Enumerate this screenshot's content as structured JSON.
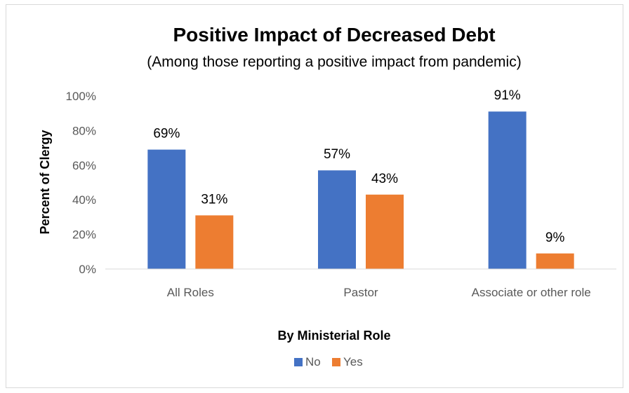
{
  "chart_data": {
    "type": "bar",
    "title": "Positive Impact of Decreased Debt",
    "subtitle": "(Among those reporting a positive impact from pandemic)",
    "xlabel": "By Ministerial Role",
    "ylabel": "Percent of Clergy",
    "categories": [
      "All Roles",
      "Pastor",
      "Associate or other role"
    ],
    "series": [
      {
        "name": "No",
        "values": [
          69,
          57,
          91
        ],
        "labels": [
          "69%",
          "57%",
          "91%"
        ],
        "color": "#4472C4"
      },
      {
        "name": "Yes",
        "values": [
          31,
          43,
          9
        ],
        "labels": [
          "31%",
          "43%",
          "9%"
        ],
        "color": "#ED7D31"
      }
    ],
    "ylim": [
      0,
      100
    ],
    "yticks": [
      0,
      20,
      40,
      60,
      80,
      100
    ],
    "ytick_labels": [
      "0%",
      "20%",
      "40%",
      "60%",
      "80%",
      "100%"
    ],
    "grid": false,
    "legend_position": "bottom"
  }
}
